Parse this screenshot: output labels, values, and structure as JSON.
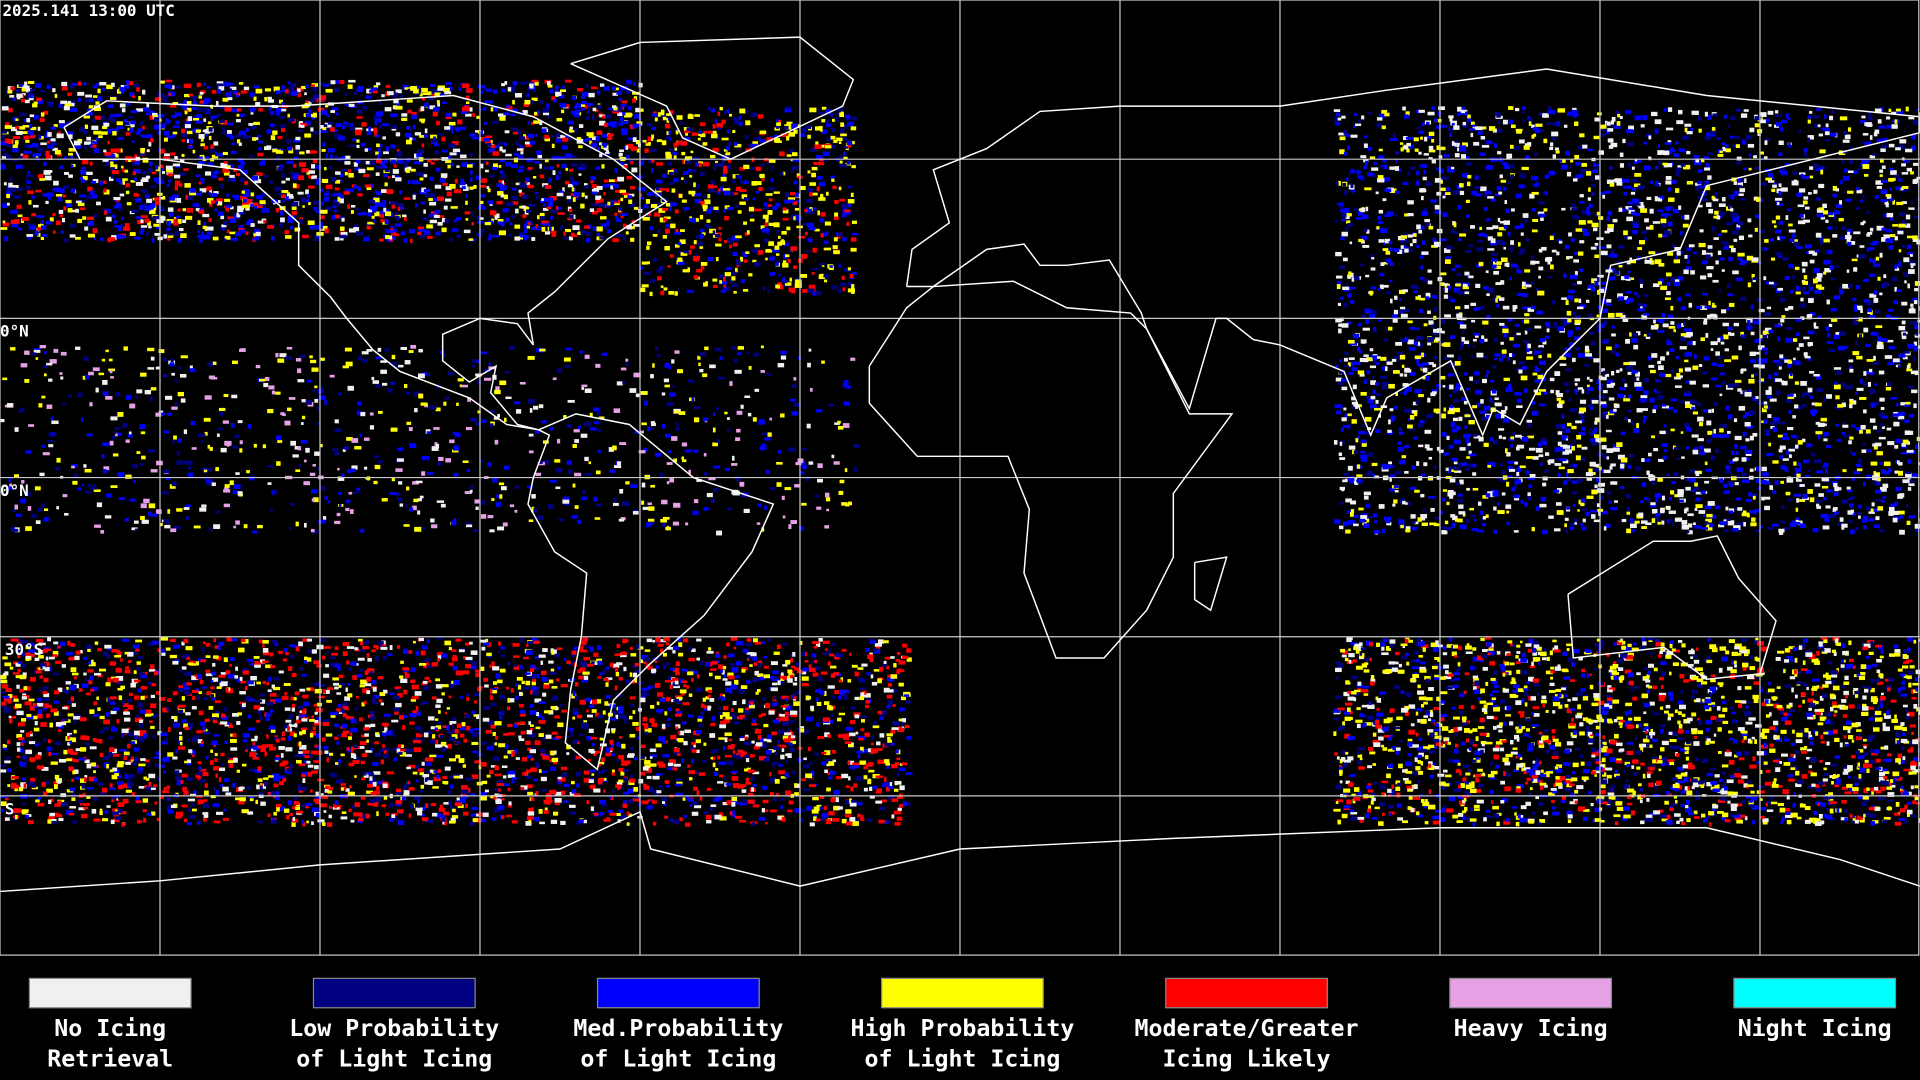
{
  "header": {
    "timestamp": "2025.141 13:00 UTC"
  },
  "map": {
    "lat_labels": [
      "0°N",
      "0°N",
      "30°S",
      "S"
    ]
  },
  "legend": {
    "items": [
      {
        "color": "#f0f0f0",
        "lines": [
          "No Icing",
          "Retrieval"
        ]
      },
      {
        "color": "#000080",
        "lines": [
          "Low Probability",
          "of Light Icing"
        ]
      },
      {
        "color": "#0000ff",
        "lines": [
          "Med.Probability",
          "of Light Icing"
        ]
      },
      {
        "color": "#ffff00",
        "lines": [
          "High Probability",
          "of Light Icing"
        ]
      },
      {
        "color": "#ff0000",
        "lines": [
          "Moderate/Greater",
          "Icing Likely"
        ]
      },
      {
        "color": "#e6a0e6",
        "lines": [
          "Heavy Icing"
        ]
      },
      {
        "color": "#00ffff",
        "lines": [
          "Night Icing"
        ]
      }
    ]
  }
}
